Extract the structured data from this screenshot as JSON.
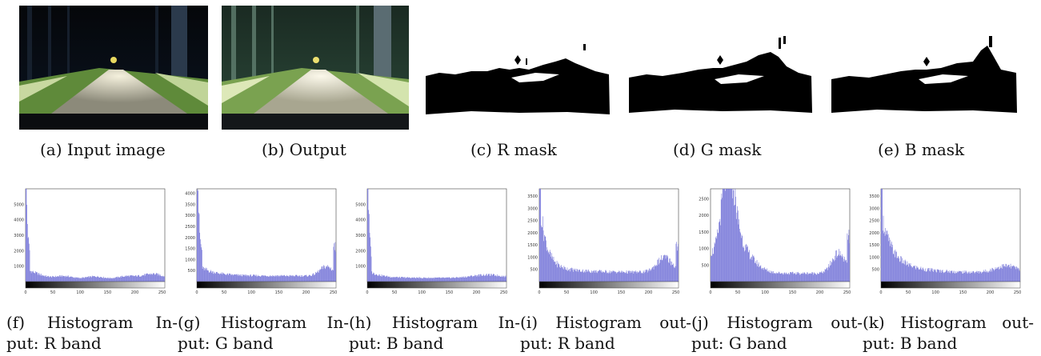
{
  "figure": {
    "top_row": [
      {
        "label": "(a) Input image",
        "content": "night-road-photo"
      },
      {
        "label": "(b) Output",
        "content": "enhanced-road-photo"
      },
      {
        "label": "(c) R mask",
        "content": "binary-mask"
      },
      {
        "label": "(d) G mask",
        "content": "binary-mask"
      },
      {
        "label": "(e) B mask",
        "content": "binary-mask"
      }
    ],
    "histogram_captions": [
      {
        "line1": [
          "(f)",
          "Histogram",
          "In-"
        ],
        "line2": "put: R band"
      },
      {
        "line1": [
          "(g)",
          "Histogram",
          "In-"
        ],
        "line2": "put: G band"
      },
      {
        "line1": [
          "(h)",
          "Histogram",
          "In-"
        ],
        "line2": "put: B band"
      },
      {
        "line1": [
          "(i)",
          "Histogram",
          "out-"
        ],
        "line2": "put: R band"
      },
      {
        "line1": [
          "(j)",
          "Histogram",
          "out-"
        ],
        "line2": "put: G band"
      },
      {
        "line1": [
          "(k)",
          "Histogram",
          "out-"
        ],
        "line2": "put: B band"
      }
    ],
    "colors": {
      "bar": "#6f6fd6",
      "mask": "#000000",
      "frame": "#222222"
    }
  },
  "chart_data": [
    {
      "type": "bar",
      "xlim": [
        0,
        255
      ],
      "ylim": [
        0,
        6000
      ],
      "x_ticks": [
        "0",
        "50",
        "100",
        "150",
        "200",
        "250"
      ],
      "y_ticks": [
        "1000",
        "2000",
        "3000",
        "4000",
        "5000"
      ],
      "profile": "input-r"
    },
    {
      "type": "bar",
      "xlim": [
        0,
        255
      ],
      "ylim": [
        0,
        4200
      ],
      "x_ticks": [
        "0",
        "50",
        "100",
        "150",
        "200",
        "250"
      ],
      "y_ticks": [
        "500",
        "1000",
        "1500",
        "2000",
        "2500",
        "3000",
        "3500",
        "4000"
      ],
      "profile": "input-g"
    },
    {
      "type": "bar",
      "xlim": [
        0,
        255
      ],
      "ylim": [
        0,
        6000
      ],
      "x_ticks": [
        "0",
        "50",
        "100",
        "150",
        "200",
        "250"
      ],
      "y_ticks": [
        "1000",
        "2000",
        "3000",
        "4000",
        "5000"
      ],
      "profile": "input-b"
    },
    {
      "type": "bar",
      "xlim": [
        0,
        255
      ],
      "ylim": [
        0,
        3800
      ],
      "x_ticks": [
        "0",
        "50",
        "100",
        "150",
        "200",
        "250"
      ],
      "y_ticks": [
        "500",
        "1000",
        "1500",
        "2000",
        "2500",
        "3000",
        "3500"
      ],
      "profile": "output-r"
    },
    {
      "type": "bar",
      "xlim": [
        0,
        255
      ],
      "ylim": [
        0,
        2800
      ],
      "x_ticks": [
        "0",
        "50",
        "100",
        "150",
        "200",
        "250"
      ],
      "y_ticks": [
        "500",
        "1000",
        "1500",
        "2000",
        "2500"
      ],
      "profile": "output-g"
    },
    {
      "type": "bar",
      "xlim": [
        0,
        255
      ],
      "ylim": [
        0,
        3800
      ],
      "x_ticks": [
        "0",
        "50",
        "100",
        "150",
        "200",
        "250"
      ],
      "y_ticks": [
        "500",
        "1000",
        "1500",
        "2000",
        "2500",
        "3000",
        "3500"
      ],
      "profile": "output-b"
    }
  ]
}
